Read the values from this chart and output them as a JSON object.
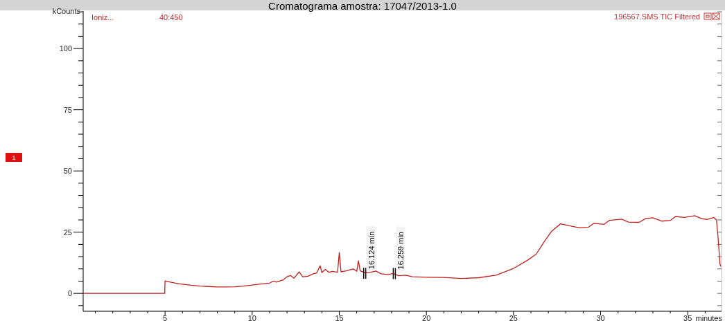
{
  "chart_data": {
    "type": "line",
    "title": "Cromatograma amostra: 17047/2013-1.0",
    "xlabel": "minutes",
    "ylabel": "kCounts",
    "annotations": [
      "Ioniz...",
      "40:450",
      "196567.SMS TIC Filtered",
      "1",
      {
        "text": "16.124 min",
        "x": 16.4,
        "y": 8.2
      },
      {
        "text": "16.259 min",
        "x": 18.1,
        "y": 8.1
      }
    ],
    "xlim": [
      0.3,
      36.9
    ],
    "ylim": [
      -7.3,
      115.3
    ],
    "xticks": [
      {
        "value": 1,
        "label": null
      },
      {
        "value": 2,
        "label": null
      },
      {
        "value": 3,
        "label": null
      },
      {
        "value": 4,
        "label": null
      },
      5,
      {
        "value": 6,
        "label": null
      },
      {
        "value": 7,
        "label": null
      },
      {
        "value": 8,
        "label": null
      },
      {
        "value": 9,
        "label": null
      },
      10,
      {
        "value": 11,
        "label": null
      },
      {
        "value": 12,
        "label": null
      },
      {
        "value": 13,
        "label": null
      },
      {
        "value": 14,
        "label": null
      },
      15,
      {
        "value": 16,
        "label": null
      },
      {
        "value": 17,
        "label": null
      },
      {
        "value": 18,
        "label": null
      },
      {
        "value": 19,
        "label": null
      },
      20,
      {
        "value": 21,
        "label": null
      },
      {
        "value": 22,
        "label": null
      },
      {
        "value": 23,
        "label": null
      },
      {
        "value": 24,
        "label": null
      },
      25,
      {
        "value": 26,
        "label": null
      },
      {
        "value": 27,
        "label": null
      },
      {
        "value": 28,
        "label": null
      },
      {
        "value": 29,
        "label": null
      },
      30,
      {
        "value": 31,
        "label": null
      },
      {
        "value": 32,
        "label": null
      },
      {
        "value": 33,
        "label": null
      },
      {
        "value": 34,
        "label": null
      },
      35,
      {
        "value": 36,
        "label": null
      }
    ],
    "yticks": [
      {
        "value": -5,
        "label": null
      },
      0,
      {
        "value": 5,
        "label": null
      },
      {
        "value": 10,
        "label": null
      },
      {
        "value": 15,
        "label": null
      },
      {
        "value": 20,
        "label": null
      },
      25,
      {
        "value": 30,
        "label": null
      },
      {
        "value": 35,
        "label": null
      },
      {
        "value": 40,
        "label": null
      },
      {
        "value": 45,
        "label": null
      },
      50,
      {
        "value": 55,
        "label": null
      },
      {
        "value": 60,
        "label": null
      },
      {
        "value": 65,
        "label": null
      },
      {
        "value": 70,
        "label": null
      },
      75,
      {
        "value": 80,
        "label": null
      },
      {
        "value": 85,
        "label": null
      },
      {
        "value": 90,
        "label": null
      },
      {
        "value": 95,
        "label": null
      },
      100,
      {
        "value": 105,
        "label": null
      },
      {
        "value": 110,
        "label": null
      },
      {
        "value": 115,
        "label": null
      }
    ],
    "grid": false,
    "marker": "none",
    "line_style": "solid",
    "series": [
      {
        "color": "#c0201c",
        "x": [
          0.3,
          4.98,
          5.0,
          5.3,
          5.8,
          6.5,
          7,
          7.5,
          8,
          8.5,
          9,
          9.5,
          10,
          10.5,
          11,
          11.2,
          11.4,
          11.8,
          12.0,
          12.2,
          12.4,
          12.7,
          12.9,
          13.2,
          13.5,
          13.7,
          13.9,
          14.0,
          14.2,
          14.4,
          14.6,
          14.9,
          15.0,
          15.1,
          15.4,
          15.6,
          15.8,
          16.0,
          16.1,
          16.2,
          16.5,
          16.8,
          17.1,
          17.4,
          17.8,
          18.1,
          18.4,
          18.8,
          19.2,
          20,
          21,
          22,
          23,
          24,
          25,
          25.8,
          26.3,
          26.8,
          27.2,
          27.7,
          28.2,
          28.8,
          29.3,
          29.6,
          30.2,
          30.5,
          31.2,
          31.6,
          32.2,
          32.6,
          33.0,
          33.5,
          34.0,
          34.3,
          34.8,
          35.4,
          35.8,
          36.1,
          36.5,
          36.65,
          36.75,
          36.85,
          36.9
        ],
        "values": [
          0,
          0,
          5.1,
          4.6,
          3.9,
          3.3,
          3.0,
          2.8,
          2.6,
          2.6,
          2.7,
          3.0,
          3.4,
          3.8,
          4.2,
          5.0,
          4.6,
          5.6,
          6.8,
          7.3,
          6.2,
          8.8,
          6.8,
          7.0,
          8.0,
          8.3,
          11.3,
          8.5,
          9.8,
          8.6,
          9.0,
          8.6,
          16.7,
          8.8,
          9.2,
          9.6,
          10.0,
          9.0,
          13.3,
          9.2,
          8.4,
          8.6,
          9.1,
          8.0,
          7.7,
          8.1,
          7.2,
          7.4,
          6.8,
          6.6,
          6.5,
          6.1,
          6.4,
          7.4,
          10.2,
          13.5,
          16.0,
          21.5,
          25.5,
          28.4,
          27.6,
          26.8,
          27.0,
          28.6,
          28.2,
          29.8,
          30.3,
          29.1,
          29.0,
          30.6,
          30.9,
          29.5,
          29.8,
          31.4,
          31.0,
          31.7,
          30.5,
          30.2,
          31.0,
          30.0,
          22,
          12,
          11
        ]
      }
    ]
  }
}
